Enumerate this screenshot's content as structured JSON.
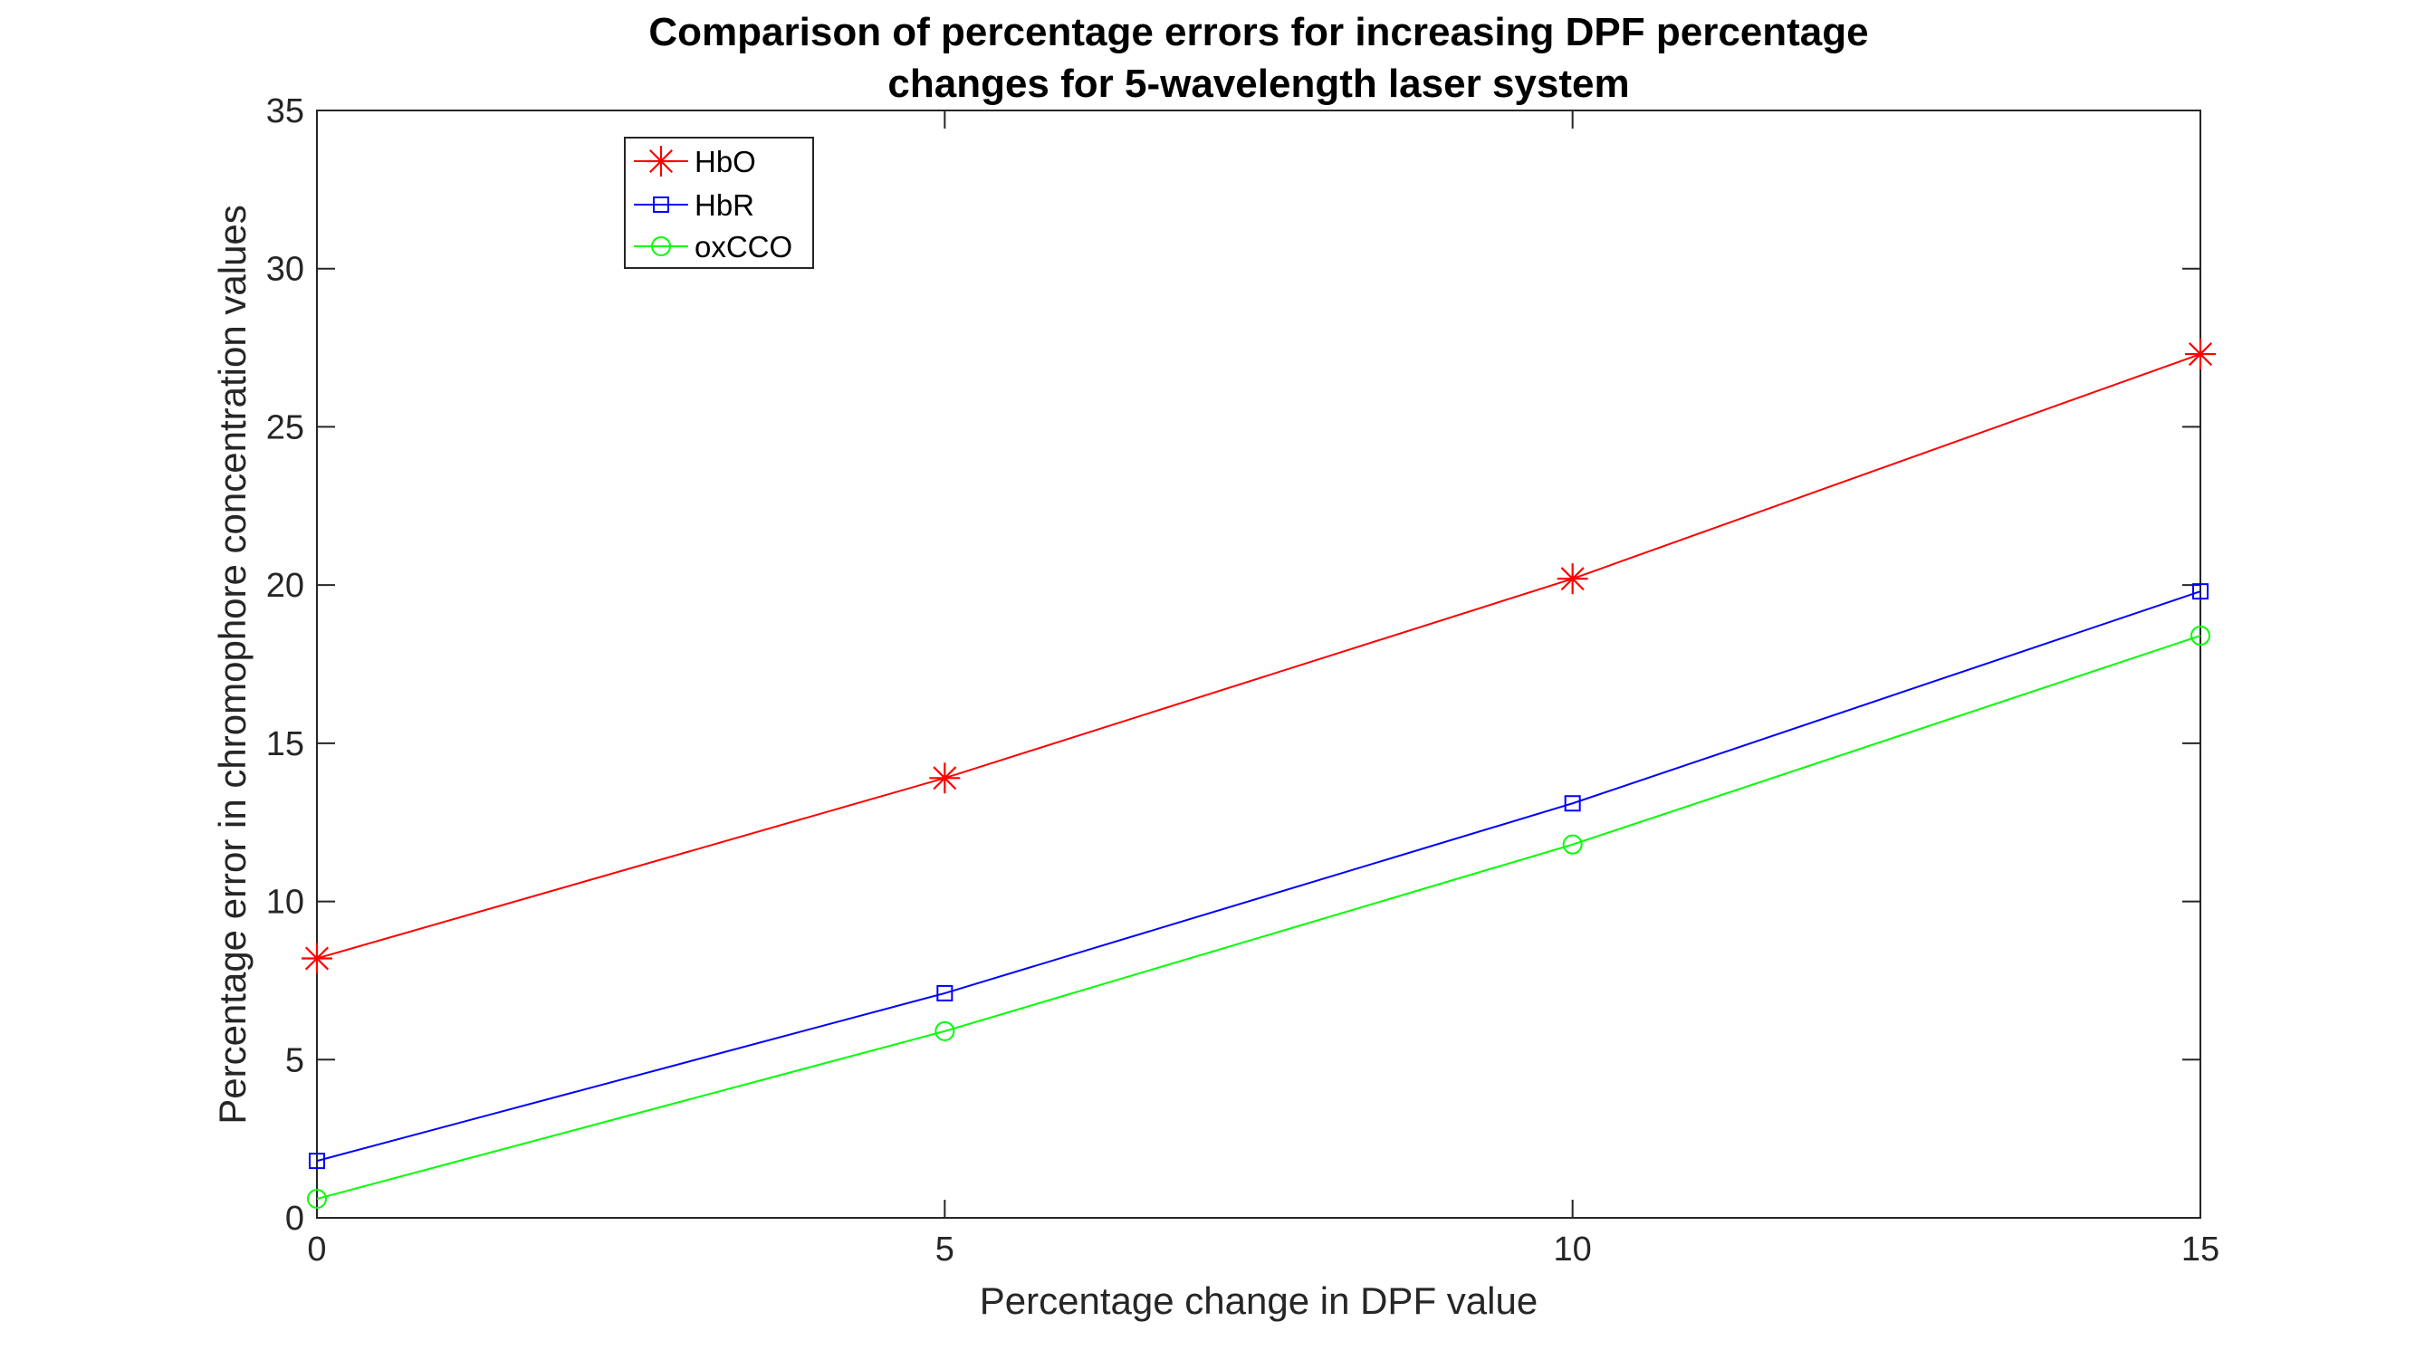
{
  "chart_data": {
    "type": "line",
    "title": [
      "Comparison of percentage errors for increasing DPF percentage",
      "changes for 5-wavelength laser system"
    ],
    "xlabel": "Percentage change in DPF value",
    "ylabel": "Percentage error in chromophore concentration values",
    "xlim": [
      0,
      15
    ],
    "ylim": [
      0,
      35
    ],
    "xticks": [
      0,
      5,
      10,
      15
    ],
    "yticks": [
      0,
      5,
      10,
      15,
      20,
      25,
      30,
      35
    ],
    "grid": false,
    "legend_position": "top-left",
    "x": [
      0,
      5,
      10,
      15
    ],
    "series": [
      {
        "name": "HbO",
        "values": [
          8.2,
          13.9,
          20.2,
          27.3
        ],
        "color": "#ff0000",
        "marker": "asterisk"
      },
      {
        "name": "HbR",
        "values": [
          1.8,
          7.1,
          13.1,
          19.8
        ],
        "color": "#0000ff",
        "marker": "square"
      },
      {
        "name": "oxCCO",
        "values": [
          0.6,
          5.9,
          11.8,
          18.4
        ],
        "color": "#00ff00",
        "marker": "circle"
      }
    ]
  }
}
